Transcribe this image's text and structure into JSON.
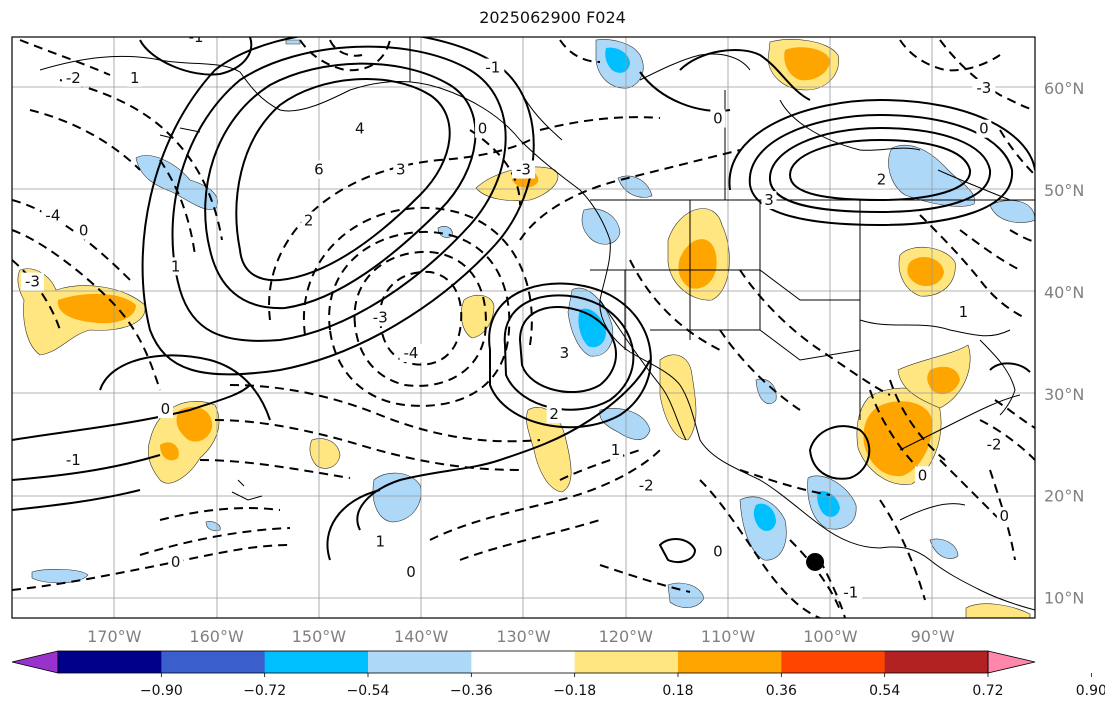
{
  "title": "2025062900 F024",
  "map": {
    "projection": "equirectangular",
    "lon_range": [
      -180,
      -80
    ],
    "lat_range": [
      8,
      65
    ],
    "lon_ticks": [
      {
        "value": -170,
        "label": "170°W"
      },
      {
        "value": -160,
        "label": "160°W"
      },
      {
        "value": -150,
        "label": "150°W"
      },
      {
        "value": -140,
        "label": "140°W"
      },
      {
        "value": -130,
        "label": "130°W"
      },
      {
        "value": -120,
        "label": "120°W"
      },
      {
        "value": -110,
        "label": "110°W"
      },
      {
        "value": -100,
        "label": "100°W"
      },
      {
        "value": -90,
        "label": "90°W"
      }
    ],
    "lat_ticks": [
      {
        "value": 60,
        "label": "60°N"
      },
      {
        "value": 50,
        "label": "50°N"
      },
      {
        "value": 40,
        "label": "40°N"
      },
      {
        "value": 30,
        "label": "30°N"
      },
      {
        "value": 20,
        "label": "20°N"
      },
      {
        "value": 10,
        "label": "10°N"
      }
    ],
    "grid": true,
    "marker": {
      "lon": -101.5,
      "lat": 13.5,
      "color": "#000000"
    },
    "contour_labels": [
      {
        "text": "6",
        "lon": -150,
        "lat": 52
      },
      {
        "text": "4",
        "lon": -146,
        "lat": 56
      },
      {
        "text": "3",
        "lon": -142,
        "lat": 52
      },
      {
        "text": "2",
        "lon": -151,
        "lat": 47
      },
      {
        "text": "1",
        "lon": -164,
        "lat": 42.5
      },
      {
        "text": "-3",
        "lon": -130,
        "lat": 52
      },
      {
        "text": "-3",
        "lon": -144,
        "lat": 37.5
      },
      {
        "text": "-4",
        "lon": -141,
        "lat": 34
      },
      {
        "text": "3",
        "lon": -126,
        "lat": 34
      },
      {
        "text": "2",
        "lon": -127,
        "lat": 28
      },
      {
        "text": "1",
        "lon": -121,
        "lat": 24.5
      },
      {
        "text": "-2",
        "lon": -118,
        "lat": 21
      },
      {
        "text": "0",
        "lon": -165,
        "lat": 28.5
      },
      {
        "text": "-1",
        "lon": -174,
        "lat": 23.5
      },
      {
        "text": "-4",
        "lon": -176,
        "lat": 47.5
      },
      {
        "text": "0",
        "lon": -173,
        "lat": 46
      },
      {
        "text": "-3",
        "lon": -178,
        "lat": 41
      },
      {
        "text": "-2",
        "lon": -174,
        "lat": 61
      },
      {
        "text": "1",
        "lon": -168,
        "lat": 61
      },
      {
        "text": "-1",
        "lon": -162,
        "lat": 65
      },
      {
        "text": "0",
        "lon": -111,
        "lat": 57
      },
      {
        "text": "3",
        "lon": -106,
        "lat": 49
      },
      {
        "text": "2",
        "lon": -95,
        "lat": 51
      },
      {
        "text": "1",
        "lon": -87,
        "lat": 38
      },
      {
        "text": "0",
        "lon": -91,
        "lat": 22
      },
      {
        "text": "-2",
        "lon": -84,
        "lat": 25
      },
      {
        "text": "0",
        "lon": -111,
        "lat": 14.5
      },
      {
        "text": "-1",
        "lon": -98,
        "lat": 10.5
      },
      {
        "text": "0",
        "lon": -164,
        "lat": 13.5
      },
      {
        "text": "1",
        "lon": -144,
        "lat": 15.5
      },
      {
        "text": "0",
        "lon": -141,
        "lat": 12.5
      },
      {
        "text": "-3",
        "lon": -85,
        "lat": 60
      },
      {
        "text": "0",
        "lon": -85,
        "lat": 56
      },
      {
        "text": "0",
        "lon": -83,
        "lat": 18
      },
      {
        "text": "0",
        "lon": -134,
        "lat": 56
      },
      {
        "text": "-1",
        "lon": -133,
        "lat": 62
      }
    ]
  },
  "colorbar": {
    "colors": [
      "#9932cc",
      "#00008b",
      "#3a5fcd",
      "#00bfff",
      "#add8f7",
      "#ffffff",
      "#ffe680",
      "#ffa500",
      "#ff4500",
      "#b22222",
      "#ff88aa"
    ],
    "tick_labels": [
      "−0.90",
      "−0.72",
      "−0.54",
      "−0.36",
      "−0.18",
      "0.18",
      "0.36",
      "0.54",
      "0.72",
      "0.90"
    ]
  }
}
